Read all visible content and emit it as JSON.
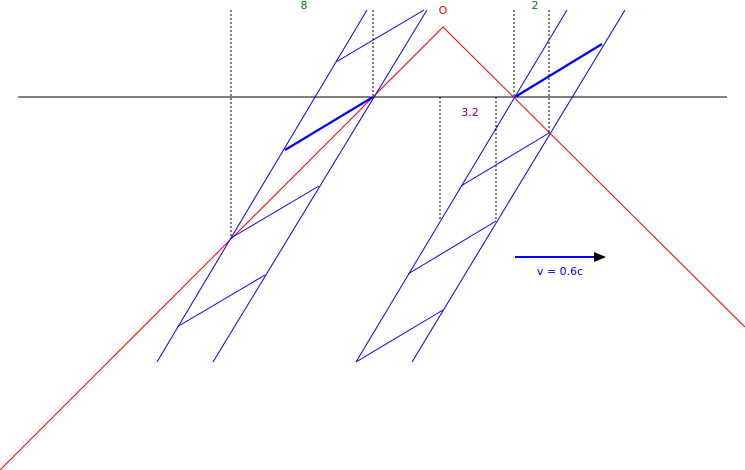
{
  "labels": {
    "left_top": "8",
    "origin": "O",
    "right_top": "2",
    "middle": "3.2",
    "velocity": "v = 0.6c"
  }
}
